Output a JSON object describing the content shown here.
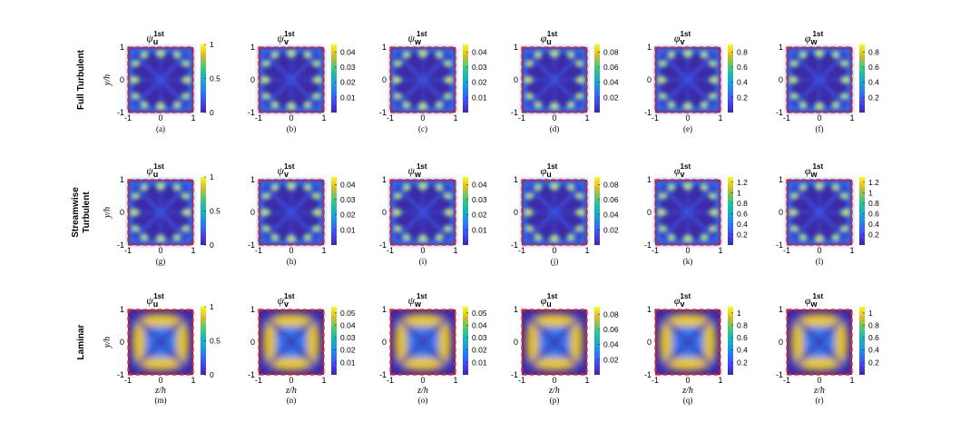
{
  "figure": {
    "row_labels": [
      [
        "Full Turbulent"
      ],
      [
        "Streamwise",
        "Turbulent"
      ],
      [
        "Laminar"
      ]
    ],
    "xlabel": "z/h",
    "ylabel": "y/h",
    "axis_ticks": [
      "-1",
      "0",
      "1"
    ],
    "panel_letters": [
      "(a)",
      "(b)",
      "(c)",
      "(d)",
      "(e)",
      "(f)",
      "(g)",
      "(h)",
      "(i)",
      "(j)",
      "(k)",
      "(l)",
      "(m)",
      "(n)",
      "(o)",
      "(p)",
      "(q)",
      "(r)"
    ]
  },
  "chart_data": {
    "type": "heatmap",
    "colormap": "parula",
    "domain": {
      "z": [
        -1,
        1
      ],
      "y": [
        -1,
        1
      ]
    },
    "wall_marker_color": "#d62728",
    "panels": [
      {
        "id": "a",
        "row": "Full Turbulent",
        "title_symbol": "ψ",
        "title_sub": "u",
        "title_sup": "1st",
        "clim": [
          0,
          1
        ],
        "cbar_ticks": [
          "0",
          "0.5",
          "1"
        ],
        "pattern": "turb",
        "field": "psi_u"
      },
      {
        "id": "b",
        "row": "Full Turbulent",
        "title_symbol": "ψ",
        "title_sub": "v",
        "title_sup": "1st",
        "clim": [
          0,
          0.045
        ],
        "cbar_ticks": [
          "0.01",
          "0.02",
          "0.03",
          "0.04"
        ],
        "pattern": "turb",
        "field": "psi_v"
      },
      {
        "id": "c",
        "row": "Full Turbulent",
        "title_symbol": "ψ",
        "title_sub": "w",
        "title_sup": "1st",
        "clim": [
          0,
          0.045
        ],
        "cbar_ticks": [
          "0.01",
          "0.02",
          "0.03",
          "0.04"
        ],
        "pattern": "turb",
        "field": "psi_w"
      },
      {
        "id": "d",
        "row": "Full Turbulent",
        "title_symbol": "φ",
        "title_sub": "u",
        "title_sup": "1st",
        "clim": [
          0,
          0.09
        ],
        "cbar_ticks": [
          "0.02",
          "0.04",
          "0.06",
          "0.08"
        ],
        "pattern": "turb",
        "field": "phi_u"
      },
      {
        "id": "e",
        "row": "Full Turbulent",
        "title_symbol": "φ",
        "title_sub": "v",
        "title_sup": "1st",
        "clim": [
          0,
          0.9
        ],
        "cbar_ticks": [
          "0.2",
          "0.4",
          "0.6",
          "0.8"
        ],
        "pattern": "turb",
        "field": "phi_v"
      },
      {
        "id": "f",
        "row": "Full Turbulent",
        "title_symbol": "φ",
        "title_sub": "w",
        "title_sup": "1st",
        "clim": [
          0,
          0.9
        ],
        "cbar_ticks": [
          "0.2",
          "0.4",
          "0.6",
          "0.8"
        ],
        "pattern": "turb",
        "field": "phi_w"
      },
      {
        "id": "g",
        "row": "Streamwise Turbulent",
        "title_symbol": "ψ",
        "title_sub": "u",
        "title_sup": "1st",
        "clim": [
          0,
          1
        ],
        "cbar_ticks": [
          "0",
          "0.5",
          "1"
        ],
        "pattern": "turb",
        "field": "psi_u"
      },
      {
        "id": "h",
        "row": "Streamwise Turbulent",
        "title_symbol": "ψ",
        "title_sub": "v",
        "title_sup": "1st",
        "clim": [
          0,
          0.045
        ],
        "cbar_ticks": [
          "0.01",
          "0.02",
          "0.03",
          "0.04"
        ],
        "pattern": "turb",
        "field": "psi_v"
      },
      {
        "id": "i",
        "row": "Streamwise Turbulent",
        "title_symbol": "ψ",
        "title_sub": "w",
        "title_sup": "1st",
        "clim": [
          0,
          0.045
        ],
        "cbar_ticks": [
          "0.01",
          "0.02",
          "0.03",
          "0.04"
        ],
        "pattern": "turb",
        "field": "psi_w"
      },
      {
        "id": "j",
        "row": "Streamwise Turbulent",
        "title_symbol": "φ",
        "title_sub": "u",
        "title_sup": "1st",
        "clim": [
          0,
          0.09
        ],
        "cbar_ticks": [
          "0.02",
          "0.04",
          "0.06",
          "0.08"
        ],
        "pattern": "turb",
        "field": "phi_u"
      },
      {
        "id": "k",
        "row": "Streamwise Turbulent",
        "title_symbol": "φ",
        "title_sub": "v",
        "title_sup": "1st",
        "clim": [
          0,
          1.3
        ],
        "cbar_ticks": [
          "0.2",
          "0.4",
          "0.6",
          "0.8",
          "1",
          "1.2"
        ],
        "pattern": "turb",
        "field": "phi_v"
      },
      {
        "id": "l",
        "row": "Streamwise Turbulent",
        "title_symbol": "φ",
        "title_sub": "w",
        "title_sup": "1st",
        "clim": [
          0,
          1.3
        ],
        "cbar_ticks": [
          "0.2",
          "0.4",
          "0.6",
          "0.8",
          "1",
          "1.2"
        ],
        "pattern": "turb",
        "field": "phi_w"
      },
      {
        "id": "m",
        "row": "Laminar",
        "title_symbol": "ψ",
        "title_sub": "u",
        "title_sup": "1st",
        "clim": [
          0,
          1
        ],
        "cbar_ticks": [
          "0",
          "0.5",
          "1"
        ],
        "pattern": "lam",
        "field": "psi_u"
      },
      {
        "id": "n",
        "row": "Laminar",
        "title_symbol": "ψ",
        "title_sub": "v",
        "title_sup": "1st",
        "clim": [
          0,
          0.055
        ],
        "cbar_ticks": [
          "0.01",
          "0.02",
          "0.03",
          "0.04",
          "0.05"
        ],
        "pattern": "lam",
        "field": "psi_v"
      },
      {
        "id": "o",
        "row": "Laminar",
        "title_symbol": "ψ",
        "title_sub": "w",
        "title_sup": "1st",
        "clim": [
          0,
          0.055
        ],
        "cbar_ticks": [
          "0.01",
          "0.02",
          "0.03",
          "0.04",
          "0.05"
        ],
        "pattern": "lam",
        "field": "psi_w"
      },
      {
        "id": "p",
        "row": "Laminar",
        "title_symbol": "φ",
        "title_sub": "u",
        "title_sup": "1st",
        "clim": [
          0,
          0.09
        ],
        "cbar_ticks": [
          "0.02",
          "0.04",
          "0.06",
          "0.08"
        ],
        "pattern": "lam",
        "field": "phi_u"
      },
      {
        "id": "q",
        "row": "Laminar",
        "title_symbol": "φ",
        "title_sub": "v",
        "title_sup": "1st",
        "clim": [
          0,
          1.1
        ],
        "cbar_ticks": [
          "0.2",
          "0.4",
          "0.6",
          "0.8",
          "1"
        ],
        "pattern": "lam",
        "field": "phi_v"
      },
      {
        "id": "r",
        "row": "Laminar",
        "title_symbol": "φ",
        "title_sub": "w",
        "title_sup": "1st",
        "clim": [
          0,
          1.1
        ],
        "cbar_ticks": [
          "0.2",
          "0.4",
          "0.6",
          "0.8",
          "1"
        ],
        "pattern": "lam",
        "field": "phi_w"
      }
    ]
  }
}
